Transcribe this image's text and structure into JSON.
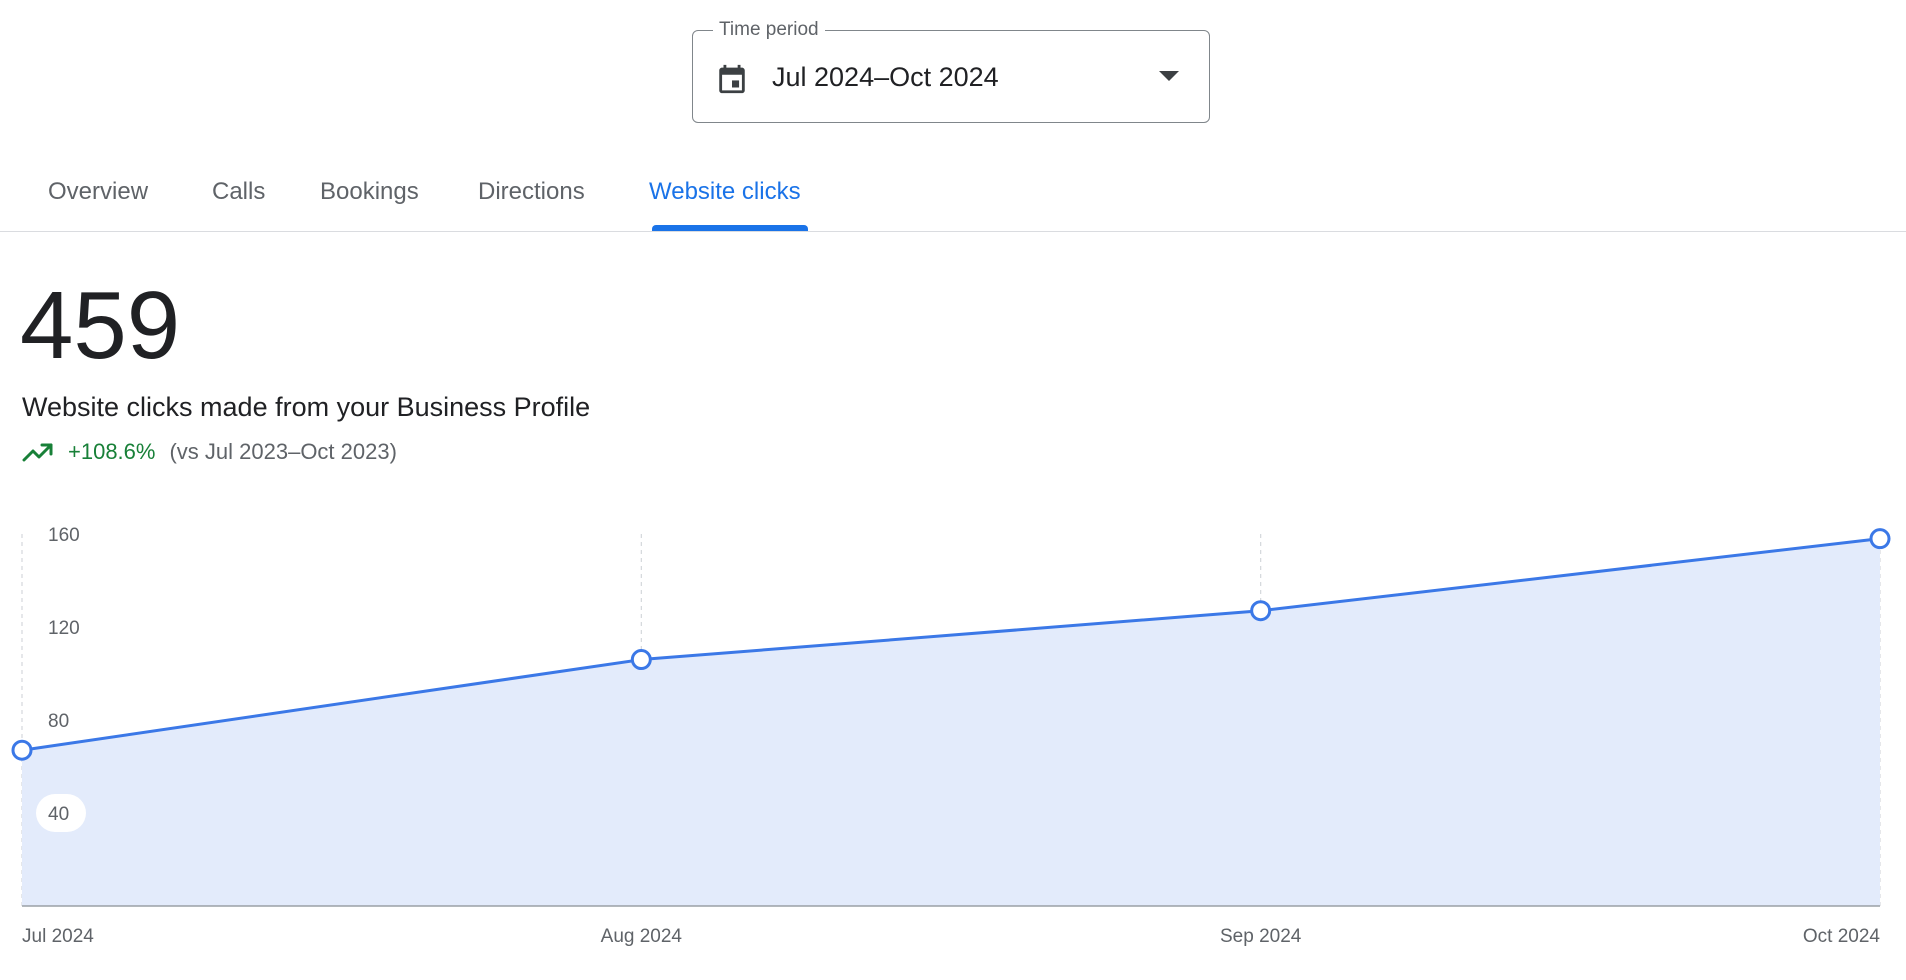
{
  "time_period": {
    "label": "Time period",
    "value": "Jul 2024–Oct 2024",
    "icon": "calendar-icon"
  },
  "tabs": [
    {
      "label": "Overview",
      "active": false
    },
    {
      "label": "Calls",
      "active": false
    },
    {
      "label": "Bookings",
      "active": false
    },
    {
      "label": "Directions",
      "active": false
    },
    {
      "label": "Website clicks",
      "active": true
    }
  ],
  "metric": {
    "value": "459",
    "description": "Website clicks made from your Business Profile",
    "change": "+108.6%",
    "comparison": "(vs Jul 2023–Oct 2023)",
    "trend_icon": "trending-up-icon"
  },
  "colors": {
    "accent": "#1a73e8",
    "line": "#3b78e7",
    "area": "#e3ebfb",
    "positive": "#188038"
  },
  "chart_data": {
    "type": "area",
    "categories": [
      "Jul 2024",
      "Aug 2024",
      "Sep 2024",
      "Oct 2024"
    ],
    "values": [
      67,
      106,
      127,
      158
    ],
    "y_ticks": [
      40,
      80,
      120,
      160
    ],
    "ylim": [
      0,
      160
    ],
    "grid": "vertical dashed",
    "title": "",
    "xlabel": "",
    "ylabel": ""
  }
}
